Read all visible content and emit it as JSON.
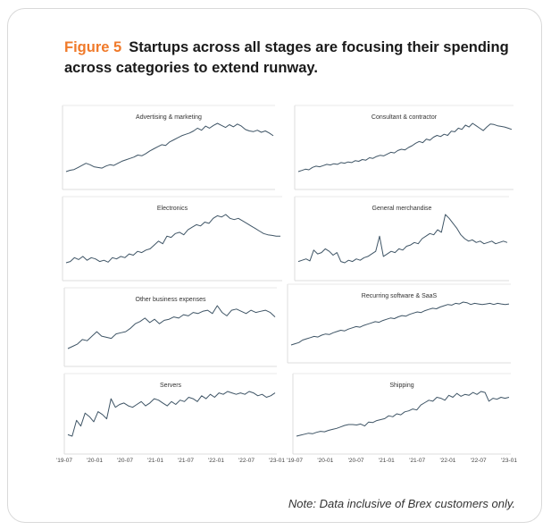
{
  "figure_label": "Figure 5",
  "title": "Startups across all stages are focusing their spending across categories to extend runway.",
  "note": "Note: Data inclusive of Brex customers only.",
  "line_color": "#3f5566",
  "xtick_labels": [
    "'19-07",
    "'20-01",
    "'20-07",
    "'21-01",
    "'21-07",
    "'22-01",
    "'22-07",
    "'23-01"
  ],
  "chart_data": [
    {
      "type": "line",
      "title": "Advertising & marketing",
      "grid": false,
      "values": [
        12,
        14,
        15,
        18,
        21,
        24,
        22,
        19,
        18,
        17,
        20,
        22,
        21,
        24,
        27,
        29,
        31,
        33,
        36,
        35,
        38,
        42,
        45,
        48,
        51,
        50,
        55,
        58,
        61,
        64,
        66,
        68,
        71,
        75,
        72,
        78,
        75,
        79,
        82,
        79,
        76,
        80,
        77,
        81,
        78,
        73,
        71,
        70,
        72,
        69,
        71,
        68,
        64
      ]
    },
    {
      "type": "line",
      "title": "Consultant & contractor",
      "grid": false,
      "values": [
        8,
        10,
        12,
        11,
        15,
        17,
        16,
        18,
        20,
        19,
        21,
        20,
        23,
        22,
        24,
        23,
        26,
        25,
        28,
        27,
        31,
        30,
        33,
        35,
        34,
        37,
        40,
        39,
        43,
        45,
        44,
        48,
        51,
        55,
        58,
        56,
        62,
        60,
        65,
        68,
        66,
        70,
        68,
        75,
        74,
        80,
        78,
        85,
        82,
        88,
        84,
        80,
        76,
        82,
        87,
        86,
        84,
        83,
        82,
        80,
        78
      ]
    },
    {
      "type": "line",
      "title": "Electronics",
      "grid": false,
      "values": [
        10,
        12,
        18,
        15,
        20,
        14,
        18,
        16,
        12,
        14,
        11,
        18,
        16,
        20,
        18,
        24,
        22,
        28,
        26,
        30,
        32,
        38,
        44,
        40,
        52,
        50,
        56,
        58,
        54,
        62,
        66,
        70,
        68,
        74,
        72,
        80,
        84,
        82,
        86,
        80,
        78,
        80,
        76,
        72,
        68,
        64,
        60,
        56,
        54,
        53,
        52,
        52
      ]
    },
    {
      "type": "line",
      "title": "General merchandise",
      "grid": false,
      "values": [
        10,
        12,
        14,
        11,
        28,
        22,
        24,
        30,
        26,
        20,
        24,
        10,
        8,
        12,
        10,
        14,
        12,
        16,
        18,
        22,
        26,
        50,
        18,
        22,
        26,
        24,
        30,
        28,
        34,
        36,
        40,
        38,
        46,
        50,
        54,
        52,
        60,
        56,
        84,
        78,
        70,
        62,
        52,
        46,
        42,
        44,
        40,
        42,
        38,
        40,
        42,
        38,
        40,
        42,
        40
      ]
    },
    {
      "type": "line",
      "title": "Other business expenses",
      "grid": false,
      "values": [
        6,
        10,
        14,
        22,
        20,
        28,
        36,
        28,
        26,
        24,
        32,
        34,
        36,
        42,
        50,
        54,
        60,
        52,
        58,
        50,
        56,
        58,
        62,
        60,
        66,
        64,
        70,
        68,
        72,
        74,
        68,
        82,
        70,
        64,
        74,
        76,
        72,
        68,
        74,
        70,
        72,
        74,
        70,
        62
      ]
    },
    {
      "type": "line",
      "title": "Recurring software & SaaS",
      "grid": false,
      "values": [
        12,
        14,
        16,
        20,
        22,
        24,
        26,
        25,
        28,
        30,
        29,
        32,
        34,
        36,
        35,
        38,
        40,
        42,
        41,
        44,
        46,
        48,
        50,
        49,
        52,
        54,
        56,
        55,
        58,
        60,
        59,
        62,
        64,
        66,
        65,
        68,
        70,
        72,
        71,
        74,
        76,
        78,
        77,
        80,
        79,
        82,
        81,
        78,
        80,
        79,
        78,
        79,
        80,
        78,
        80,
        79,
        78,
        79
      ]
    },
    {
      "type": "line",
      "title": "Servers",
      "grid": false,
      "values": [
        30,
        28,
        50,
        42,
        60,
        55,
        48,
        62,
        58,
        52,
        80,
        68,
        72,
        74,
        70,
        68,
        72,
        76,
        70,
        74,
        80,
        78,
        74,
        70,
        76,
        72,
        78,
        76,
        82,
        80,
        76,
        84,
        80,
        86,
        82,
        88,
        86,
        90,
        88,
        86,
        88,
        86,
        90,
        88,
        84,
        86,
        82,
        84,
        88
      ]
    },
    {
      "type": "line",
      "title": "Shipping",
      "grid": false,
      "values": [
        6,
        8,
        10,
        12,
        11,
        14,
        16,
        15,
        18,
        20,
        22,
        25,
        28,
        30,
        30,
        29,
        31,
        27,
        35,
        34,
        38,
        40,
        42,
        48,
        46,
        52,
        50,
        56,
        58,
        62,
        60,
        70,
        75,
        80,
        78,
        86,
        84,
        80,
        90,
        86,
        94,
        88,
        92,
        90,
        96,
        92,
        98,
        96,
        78,
        84,
        82,
        86,
        84,
        86
      ]
    }
  ]
}
